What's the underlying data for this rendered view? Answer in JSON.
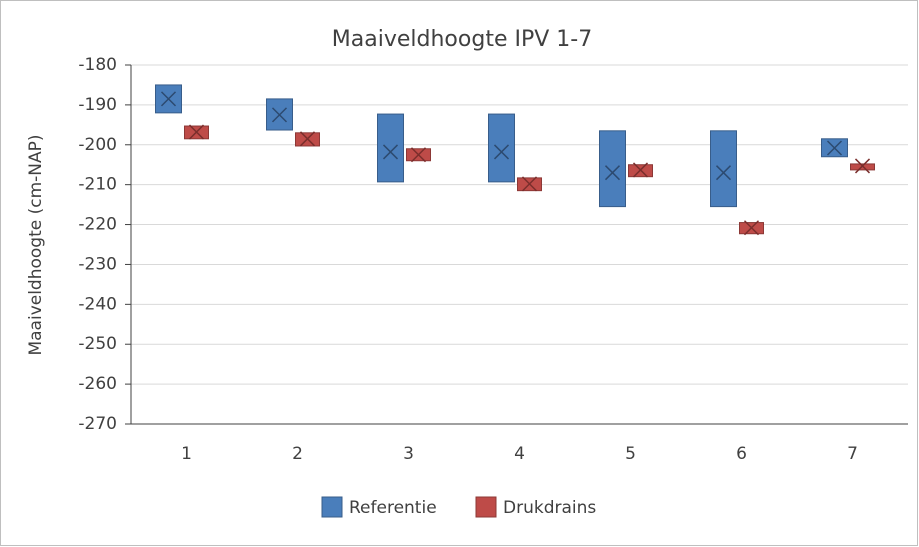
{
  "chart_data": {
    "type": "range-box",
    "title": "Maaiveldhoogte IPV 1-7",
    "y_label": "Maaiveldhoogte (cm-NAP)",
    "categories": [
      "1",
      "2",
      "3",
      "4",
      "5",
      "6",
      "7"
    ],
    "series": [
      {
        "name": "Referentie",
        "color": "#4a7ebb",
        "low": [
          -192,
          -196.3,
          -209.3,
          -209.3,
          -215.5,
          -215.5,
          -203
        ],
        "high": [
          -185,
          -188.5,
          -192.3,
          -192.3,
          -196.5,
          -196.5,
          -198.5
        ],
        "mean": [
          -188.5,
          -192.5,
          -201.8,
          -201.8,
          -207,
          -207,
          -200.8
        ]
      },
      {
        "name": "Drukdrains",
        "color": "#be4b48",
        "low": [
          -198.5,
          -200.3,
          -204,
          -211.5,
          -208,
          -222.3,
          -206.3
        ],
        "high": [
          -195.3,
          -197,
          -201,
          -208.3,
          -205,
          -219.5,
          -204.8
        ],
        "mean": [
          -196.8,
          -198.5,
          -202.5,
          -209.8,
          -206.3,
          -220.8,
          -205.3
        ]
      }
    ],
    "ylim": [
      -270,
      -180
    ],
    "yticks": [
      -270,
      -260,
      -250,
      -240,
      -230,
      -220,
      -210,
      -200,
      -190,
      -180
    ],
    "grid": true,
    "legend": "bottom"
  }
}
